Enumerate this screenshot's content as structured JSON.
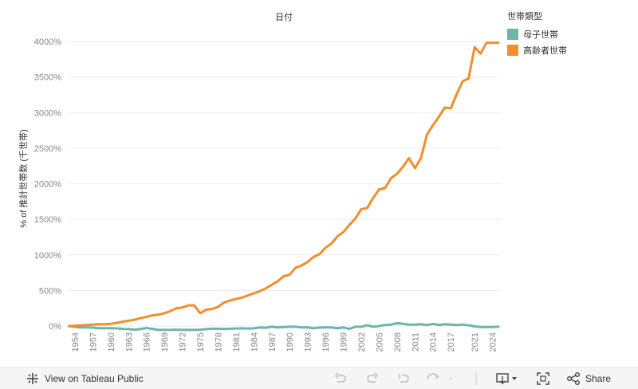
{
  "chart_data": {
    "type": "line",
    "title": "日付",
    "ylabel": "% of 推計世帯数 (千世帯)",
    "ylim": [
      0,
      4000
    ],
    "yticks": [
      0,
      500,
      1000,
      1500,
      2000,
      2500,
      3000,
      3500,
      4000
    ],
    "ytick_labels": [
      "0%",
      "500%",
      "1000%",
      "1500%",
      "2000%",
      "2500%",
      "3000%",
      "3500%",
      "4000%"
    ],
    "x_range": [
      1954,
      2025
    ],
    "xtick_labels": [
      "1954",
      "1957",
      "1960",
      "1963",
      "1966",
      "1969",
      "1972",
      "1975",
      "1978",
      "1981",
      "1984",
      "1987",
      "1990",
      "1993",
      "1996",
      "1999",
      "2002",
      "2005",
      "2008",
      "2011",
      "2014",
      "2017",
      "2021",
      "2024"
    ],
    "grid": "horizontal",
    "legend_title": "世帯類型",
    "legend_position": "top-right",
    "series": [
      {
        "name": "母子世帯",
        "color": "#6db5a9",
        "x": [
          1953,
          1954,
          1955,
          1956,
          1957,
          1958,
          1959,
          1960,
          1961,
          1962,
          1963,
          1964,
          1965,
          1966,
          1967,
          1968,
          1969,
          1970,
          1971,
          1972,
          1973,
          1974,
          1975,
          1976,
          1977,
          1978,
          1979,
          1980,
          1981,
          1982,
          1983,
          1984,
          1985,
          1986,
          1987,
          1988,
          1989,
          1990,
          1991,
          1992,
          1993,
          1994,
          1995,
          1996,
          1997,
          1998,
          1999,
          2000,
          2001,
          2002,
          2003,
          2004,
          2005,
          2006,
          2007,
          2008,
          2009,
          2010,
          2011,
          2012,
          2013,
          2014,
          2015,
          2016,
          2017,
          2018,
          2019,
          2020,
          2021,
          2022,
          2023,
          2024,
          2025
        ],
        "y": [
          0,
          -15,
          -20,
          -20,
          -22,
          -30,
          -30,
          -30,
          -32,
          -40,
          -42,
          -52,
          -42,
          -28,
          -40,
          -55,
          -55,
          -55,
          -52,
          -55,
          -55,
          -55,
          -52,
          -44,
          -38,
          -38,
          -42,
          -38,
          -35,
          -33,
          -35,
          -32,
          -20,
          -25,
          -10,
          -20,
          -15,
          -10,
          -10,
          -20,
          -20,
          -30,
          -22,
          -20,
          -20,
          -30,
          -20,
          -40,
          -10,
          -10,
          10,
          -10,
          0,
          15,
          20,
          40,
          30,
          20,
          20,
          25,
          15,
          30,
          15,
          25,
          20,
          15,
          20,
          10,
          -5,
          -15,
          -15,
          -15,
          -10
        ]
      },
      {
        "name": "高齢者世帯",
        "color": "#f28e2b",
        "x": [
          1953,
          1954,
          1955,
          1956,
          1957,
          1958,
          1959,
          1960,
          1961,
          1962,
          1963,
          1964,
          1965,
          1966,
          1967,
          1968,
          1969,
          1970,
          1971,
          1972,
          1973,
          1974,
          1975,
          1976,
          1977,
          1978,
          1979,
          1980,
          1981,
          1982,
          1983,
          1984,
          1985,
          1986,
          1987,
          1988,
          1989,
          1990,
          1991,
          1992,
          1993,
          1994,
          1995,
          1996,
          1997,
          1998,
          1999,
          2000,
          2001,
          2002,
          2003,
          2004,
          2005,
          2006,
          2007,
          2008,
          2009,
          2010,
          2011,
          2012,
          2013,
          2014,
          2015,
          2016,
          2017,
          2018,
          2019,
          2020,
          2021,
          2022,
          2023,
          2024,
          2025
        ],
        "y": [
          0,
          5,
          10,
          15,
          20,
          25,
          25,
          30,
          45,
          60,
          75,
          90,
          110,
          130,
          150,
          160,
          180,
          210,
          250,
          260,
          290,
          290,
          180,
          230,
          240,
          270,
          330,
          360,
          380,
          400,
          430,
          460,
          490,
          530,
          580,
          630,
          700,
          720,
          820,
          850,
          900,
          970,
          1010,
          1100,
          1160,
          1260,
          1320,
          1420,
          1510,
          1640,
          1660,
          1800,
          1920,
          1940,
          2080,
          2140,
          2240,
          2360,
          2220,
          2360,
          2690,
          2820,
          2940,
          3070,
          3060,
          3260,
          3440,
          3480,
          3920,
          3830,
          3980,
          3980,
          3980
        ]
      }
    ]
  },
  "legend": {
    "title": "世帯類型",
    "items": [
      {
        "label": "母子世帯",
        "color": "#6db5a9"
      },
      {
        "label": "高齢者世帯",
        "color": "#f28e2b"
      }
    ]
  },
  "toolbar": {
    "view_label": "View on Tableau Public",
    "share_label": "Share"
  }
}
